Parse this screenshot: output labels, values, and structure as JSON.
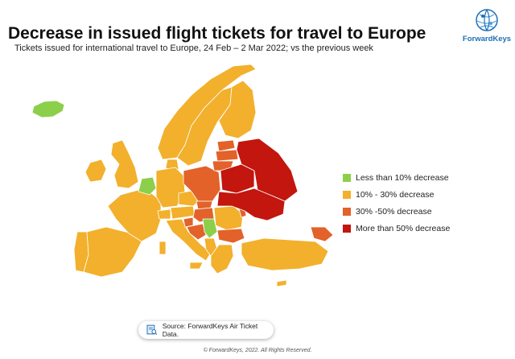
{
  "header": {
    "title": "Decrease in issued flight tickets for travel to Europe",
    "subtitle": "Tickets issued for international travel to Europe, 24 Feb – 2 Mar 2022; vs the previous week"
  },
  "logo": {
    "text": "ForwardKeys",
    "color": "#1f6fb6"
  },
  "legend": {
    "items": [
      {
        "label": "Less than 10% decrease",
        "color": "#8ccf4b"
      },
      {
        "label": "10% - 30% decrease",
        "color": "#f2b02c"
      },
      {
        "label": "30% -50% decrease",
        "color": "#e2622a"
      },
      {
        "label": "More than 50% decrease",
        "color": "#c2160e"
      }
    ]
  },
  "source": {
    "text": "Source: ForwardKeys Air Ticket Data.",
    "icon": "document-search-icon"
  },
  "footer": {
    "text": "© ForwardKeys, 2022. All Rights Reserved."
  },
  "map_colors": {
    "border": "#ffffff"
  }
}
